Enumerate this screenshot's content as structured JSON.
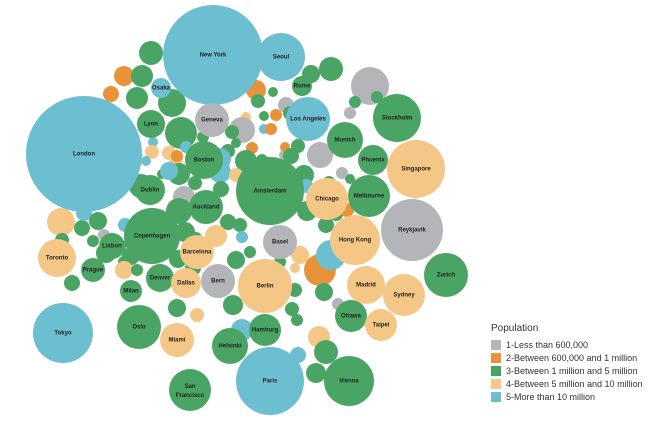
{
  "chart_data": {
    "type": "bubble",
    "legend": {
      "title": "Population",
      "placement": "bottom-right",
      "items": [
        {
          "label": "1-Less than 600,000",
          "color": "#b3b5b8"
        },
        {
          "label": "2-Between 600,000 and 1 million",
          "color": "#e8923a"
        },
        {
          "label": "3-Between 1 million and 5 million",
          "color": "#4aa564"
        },
        {
          "label": "4-Between 5 million and 10 million",
          "color": "#f5c786"
        },
        {
          "label": "5-More than 10 million",
          "color": "#6cbfd0"
        }
      ]
    },
    "labeled_cities": [
      {
        "name": "New York",
        "category": 5
      },
      {
        "name": "Seoul",
        "category": 5
      },
      {
        "name": "London",
        "category": 5
      },
      {
        "name": "Osaka",
        "category": 5
      },
      {
        "name": "Rome",
        "category": 3
      },
      {
        "name": "Geneva",
        "category": 1
      },
      {
        "name": "Lyon",
        "category": 3
      },
      {
        "name": "Los Angeles",
        "category": 5
      },
      {
        "name": "Stockholm",
        "category": 3
      },
      {
        "name": "Munich",
        "category": 3
      },
      {
        "name": "Boston",
        "category": 3
      },
      {
        "name": "Phoenix",
        "category": 3
      },
      {
        "name": "Singapore",
        "category": 4
      },
      {
        "name": "Dublin",
        "category": 3
      },
      {
        "name": "Amsterdam",
        "category": 3
      },
      {
        "name": "Chicago",
        "category": 4
      },
      {
        "name": "Melbourne",
        "category": 3
      },
      {
        "name": "Auckland",
        "category": 3
      },
      {
        "name": "Reykjavik",
        "category": 1
      },
      {
        "name": "Copenhagen",
        "category": 3
      },
      {
        "name": "Lisbon",
        "category": 3
      },
      {
        "name": "Barcelona",
        "category": 4
      },
      {
        "name": "Basel",
        "category": 1
      },
      {
        "name": "Hong Kong",
        "category": 4
      },
      {
        "name": "Toronto",
        "category": 4
      },
      {
        "name": "Prague",
        "category": 3
      },
      {
        "name": "Denver",
        "category": 3
      },
      {
        "name": "Zurich",
        "category": 3
      },
      {
        "name": "Bern",
        "category": 1
      },
      {
        "name": "Dallas",
        "category": 4
      },
      {
        "name": "Berlin",
        "category": 4
      },
      {
        "name": "Madrid",
        "category": 4
      },
      {
        "name": "Milan",
        "category": 3
      },
      {
        "name": "Sydney",
        "category": 4
      },
      {
        "name": "Tokyo",
        "category": 5
      },
      {
        "name": "Oslo",
        "category": 3
      },
      {
        "name": "Ottawa",
        "category": 3
      },
      {
        "name": "Taipei",
        "category": 4
      },
      {
        "name": "Miami",
        "category": 4
      },
      {
        "name": "Helsinki",
        "category": 3
      },
      {
        "name": "Hamburg",
        "category": 3
      },
      {
        "name": "Paris",
        "category": 5
      },
      {
        "name": "Vienna",
        "category": 3
      },
      {
        "name": "San Francisco",
        "category": 3
      }
    ],
    "unlabeled_bubble_categories": [
      3,
      2,
      3,
      2,
      3,
      3,
      2,
      5,
      3,
      3,
      3,
      1,
      1,
      3,
      2,
      3,
      3,
      3,
      3,
      1,
      5,
      4,
      1,
      2,
      3,
      5,
      4,
      4,
      5,
      5,
      3,
      4,
      3,
      1,
      3,
      2,
      3,
      3,
      2,
      3,
      3,
      5,
      5,
      3,
      1,
      3,
      2,
      3,
      1,
      3,
      4,
      5,
      3,
      3,
      3,
      1,
      5,
      3,
      3,
      3,
      3,
      2,
      3,
      3,
      5,
      3,
      3,
      4,
      3,
      3,
      4,
      3,
      1,
      5,
      3,
      3,
      3,
      5,
      3,
      3,
      4,
      3,
      4,
      3,
      3,
      3,
      3,
      3,
      3,
      3,
      4,
      3,
      5,
      4,
      3,
      4,
      3,
      2,
      3,
      3,
      5,
      4,
      3,
      3,
      1,
      5,
      3,
      3
    ]
  }
}
